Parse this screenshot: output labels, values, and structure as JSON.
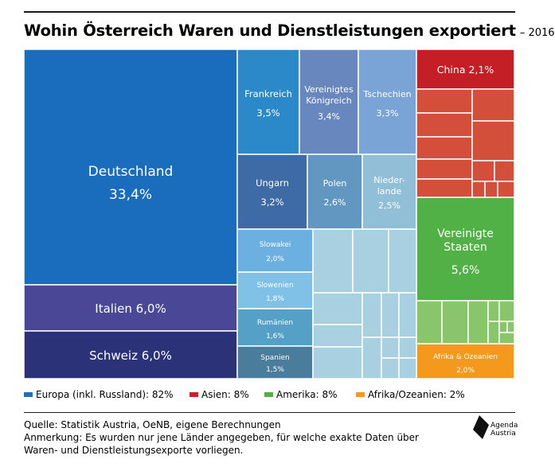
{
  "title": "Wohin Österreich Waren und Dienstleistungen exportiert",
  "subtitle": "– 2016",
  "colors": {
    "europa": "#1f6fbf",
    "asien": "#cf2027",
    "amerika": "#52b146",
    "afrika": "#f39a1c"
  },
  "chart_data": {
    "type": "treemap",
    "items": [
      {
        "name": "Deutschland",
        "value": 33.4,
        "label": "33,4%",
        "group": "Europa"
      },
      {
        "name": "Italien",
        "value": 6.0,
        "label": "6,0%",
        "group": "Europa"
      },
      {
        "name": "Schweiz",
        "value": 6.0,
        "label": "6,0%",
        "group": "Europa"
      },
      {
        "name": "Frankreich",
        "value": 3.5,
        "label": "3,5%",
        "group": "Europa"
      },
      {
        "name": "Vereinigtes Königreich",
        "value": 3.4,
        "label": "3,4%",
        "group": "Europa"
      },
      {
        "name": "Tschechien",
        "value": 3.3,
        "label": "3,3%",
        "group": "Europa"
      },
      {
        "name": "Ungarn",
        "value": 3.2,
        "label": "3,2%",
        "group": "Europa"
      },
      {
        "name": "Polen",
        "value": 2.6,
        "label": "2,6%",
        "group": "Europa"
      },
      {
        "name": "Niederlande",
        "value": 2.5,
        "label": "2,5%",
        "group": "Europa"
      },
      {
        "name": "Slowakei",
        "value": 2.0,
        "label": "2,0%",
        "group": "Europa"
      },
      {
        "name": "Slowenien",
        "value": 1.8,
        "label": "1,8%",
        "group": "Europa"
      },
      {
        "name": "Rumänien",
        "value": 1.6,
        "label": "1,6%",
        "group": "Europa"
      },
      {
        "name": "Spanien",
        "value": 1.5,
        "label": "1,5%",
        "group": "Europa"
      },
      {
        "name": "China",
        "value": 2.1,
        "label": "2,1%",
        "group": "Asien"
      },
      {
        "name": "Vereinigte Staaten",
        "value": 5.6,
        "label": "5,6%",
        "group": "Amerika"
      },
      {
        "name": "Afrika & Ozeanien",
        "value": 2.0,
        "label": "2,0%",
        "group": "Afrika/Ozeanien"
      }
    ],
    "groups": [
      {
        "name": "Europa (inkl. Russland)",
        "share": 82,
        "label": "Europa (inkl. Russland): 82%"
      },
      {
        "name": "Asien",
        "share": 8,
        "label": "Asien: 8%"
      },
      {
        "name": "Amerika",
        "share": 8,
        "label": "Amerika: 8%"
      },
      {
        "name": "Afrika/Ozeanien",
        "share": 2,
        "label": "Afrika/Ozeanien: 2%"
      }
    ]
  },
  "notes": {
    "source": "Quelle: Statistik Austria, OeNB, eigene Berechnungen",
    "remark_line1": "Anmerkung: Es wurden nur jene Länder angegeben, für welche exakte Daten über",
    "remark_line2": "Waren- und Dienstleistungsexporte vorliegen."
  },
  "logo": {
    "line1": "Agenda",
    "line2": "Austria"
  }
}
